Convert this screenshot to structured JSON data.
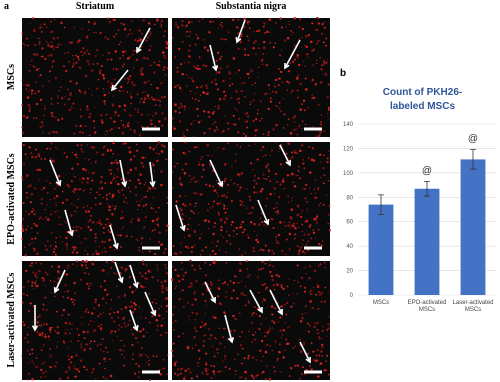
{
  "panel_a": {
    "label": "a",
    "columns": [
      "Striatum",
      "Substantia nigra"
    ],
    "rows": [
      "MSCs",
      "EPO-activated MSCs",
      "Laser-activated MSCs"
    ]
  },
  "chart_data": {
    "type": "bar",
    "panel_label": "b",
    "title": "Count of PKH26-labeled MSCs",
    "categories": [
      "MSCs",
      "EPO-activated MSCs",
      "Laser-activated MSCs"
    ],
    "values": [
      74,
      87,
      111
    ],
    "errors": [
      8,
      6,
      8
    ],
    "color": "#4472c4",
    "ylim": [
      0,
      140
    ],
    "yticks": [
      0,
      20,
      40,
      60,
      80,
      100,
      120,
      140
    ],
    "grid": true,
    "annotations": [
      {
        "category": "EPO-activated MSCs",
        "text": "@"
      },
      {
        "category": "Laser-activated MSCs",
        "text": "@"
      }
    ]
  }
}
